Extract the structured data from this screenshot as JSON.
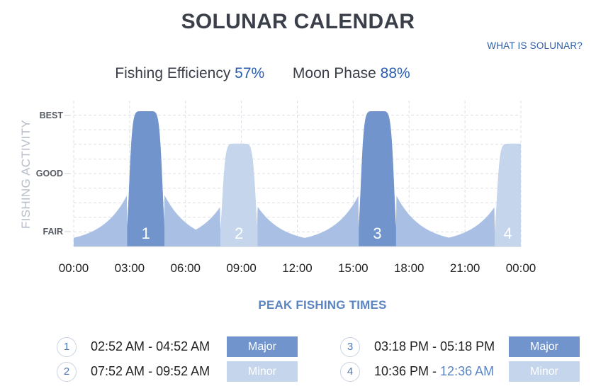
{
  "title": "SOLUNAR CALENDAR",
  "what_link": "WHAT IS SOLUNAR?",
  "stats": {
    "efficiency_label": "Fishing Efficiency",
    "efficiency_value": "57%",
    "moon_label": "Moon Phase",
    "moon_value": "88%"
  },
  "colors": {
    "major": "#7094cb",
    "minor": "#c5d5ec",
    "area": "#a9c0e4",
    "accent": "#2a5db0"
  },
  "chart_data": {
    "type": "area",
    "ylabel": "FISHING ACTIVITY",
    "y_levels": [
      "FAIR",
      "GOOD",
      "BEST"
    ],
    "x_ticks": [
      "00:00",
      "03:00",
      "06:00",
      "09:00",
      "12:00",
      "15:00",
      "18:00",
      "21:00",
      "00:00"
    ],
    "xlim": [
      0,
      24
    ],
    "ylim": [
      0,
      3
    ],
    "grid": true,
    "periods": [
      {
        "label": "1",
        "type": "major",
        "start": 2.87,
        "end": 4.87,
        "peak": 2.33
      },
      {
        "label": "2",
        "type": "minor",
        "start": 7.87,
        "end": 9.87,
        "peak": 1.77
      },
      {
        "label": "3",
        "type": "major",
        "start": 15.3,
        "end": 17.3,
        "peak": 2.33
      },
      {
        "label": "4",
        "type": "minor",
        "start": 22.6,
        "end": 24.6,
        "peak": 1.77
      }
    ]
  },
  "peak": {
    "title": "PEAK FISHING TIMES",
    "rows": [
      {
        "num": "1",
        "start": "02:52 AM",
        "sep": " - ",
        "end": "04:52 AM",
        "type": "Major"
      },
      {
        "num": "2",
        "start": "07:52 AM",
        "sep": " - ",
        "end": "09:52 AM",
        "type": "Minor"
      },
      {
        "num": "3",
        "start": "03:18 PM",
        "sep": " - ",
        "end": "05:18 PM",
        "type": "Major"
      },
      {
        "num": "4",
        "start": "10:36 PM",
        "sep": " - ",
        "end": "12:36 AM",
        "type": "Minor"
      }
    ]
  }
}
